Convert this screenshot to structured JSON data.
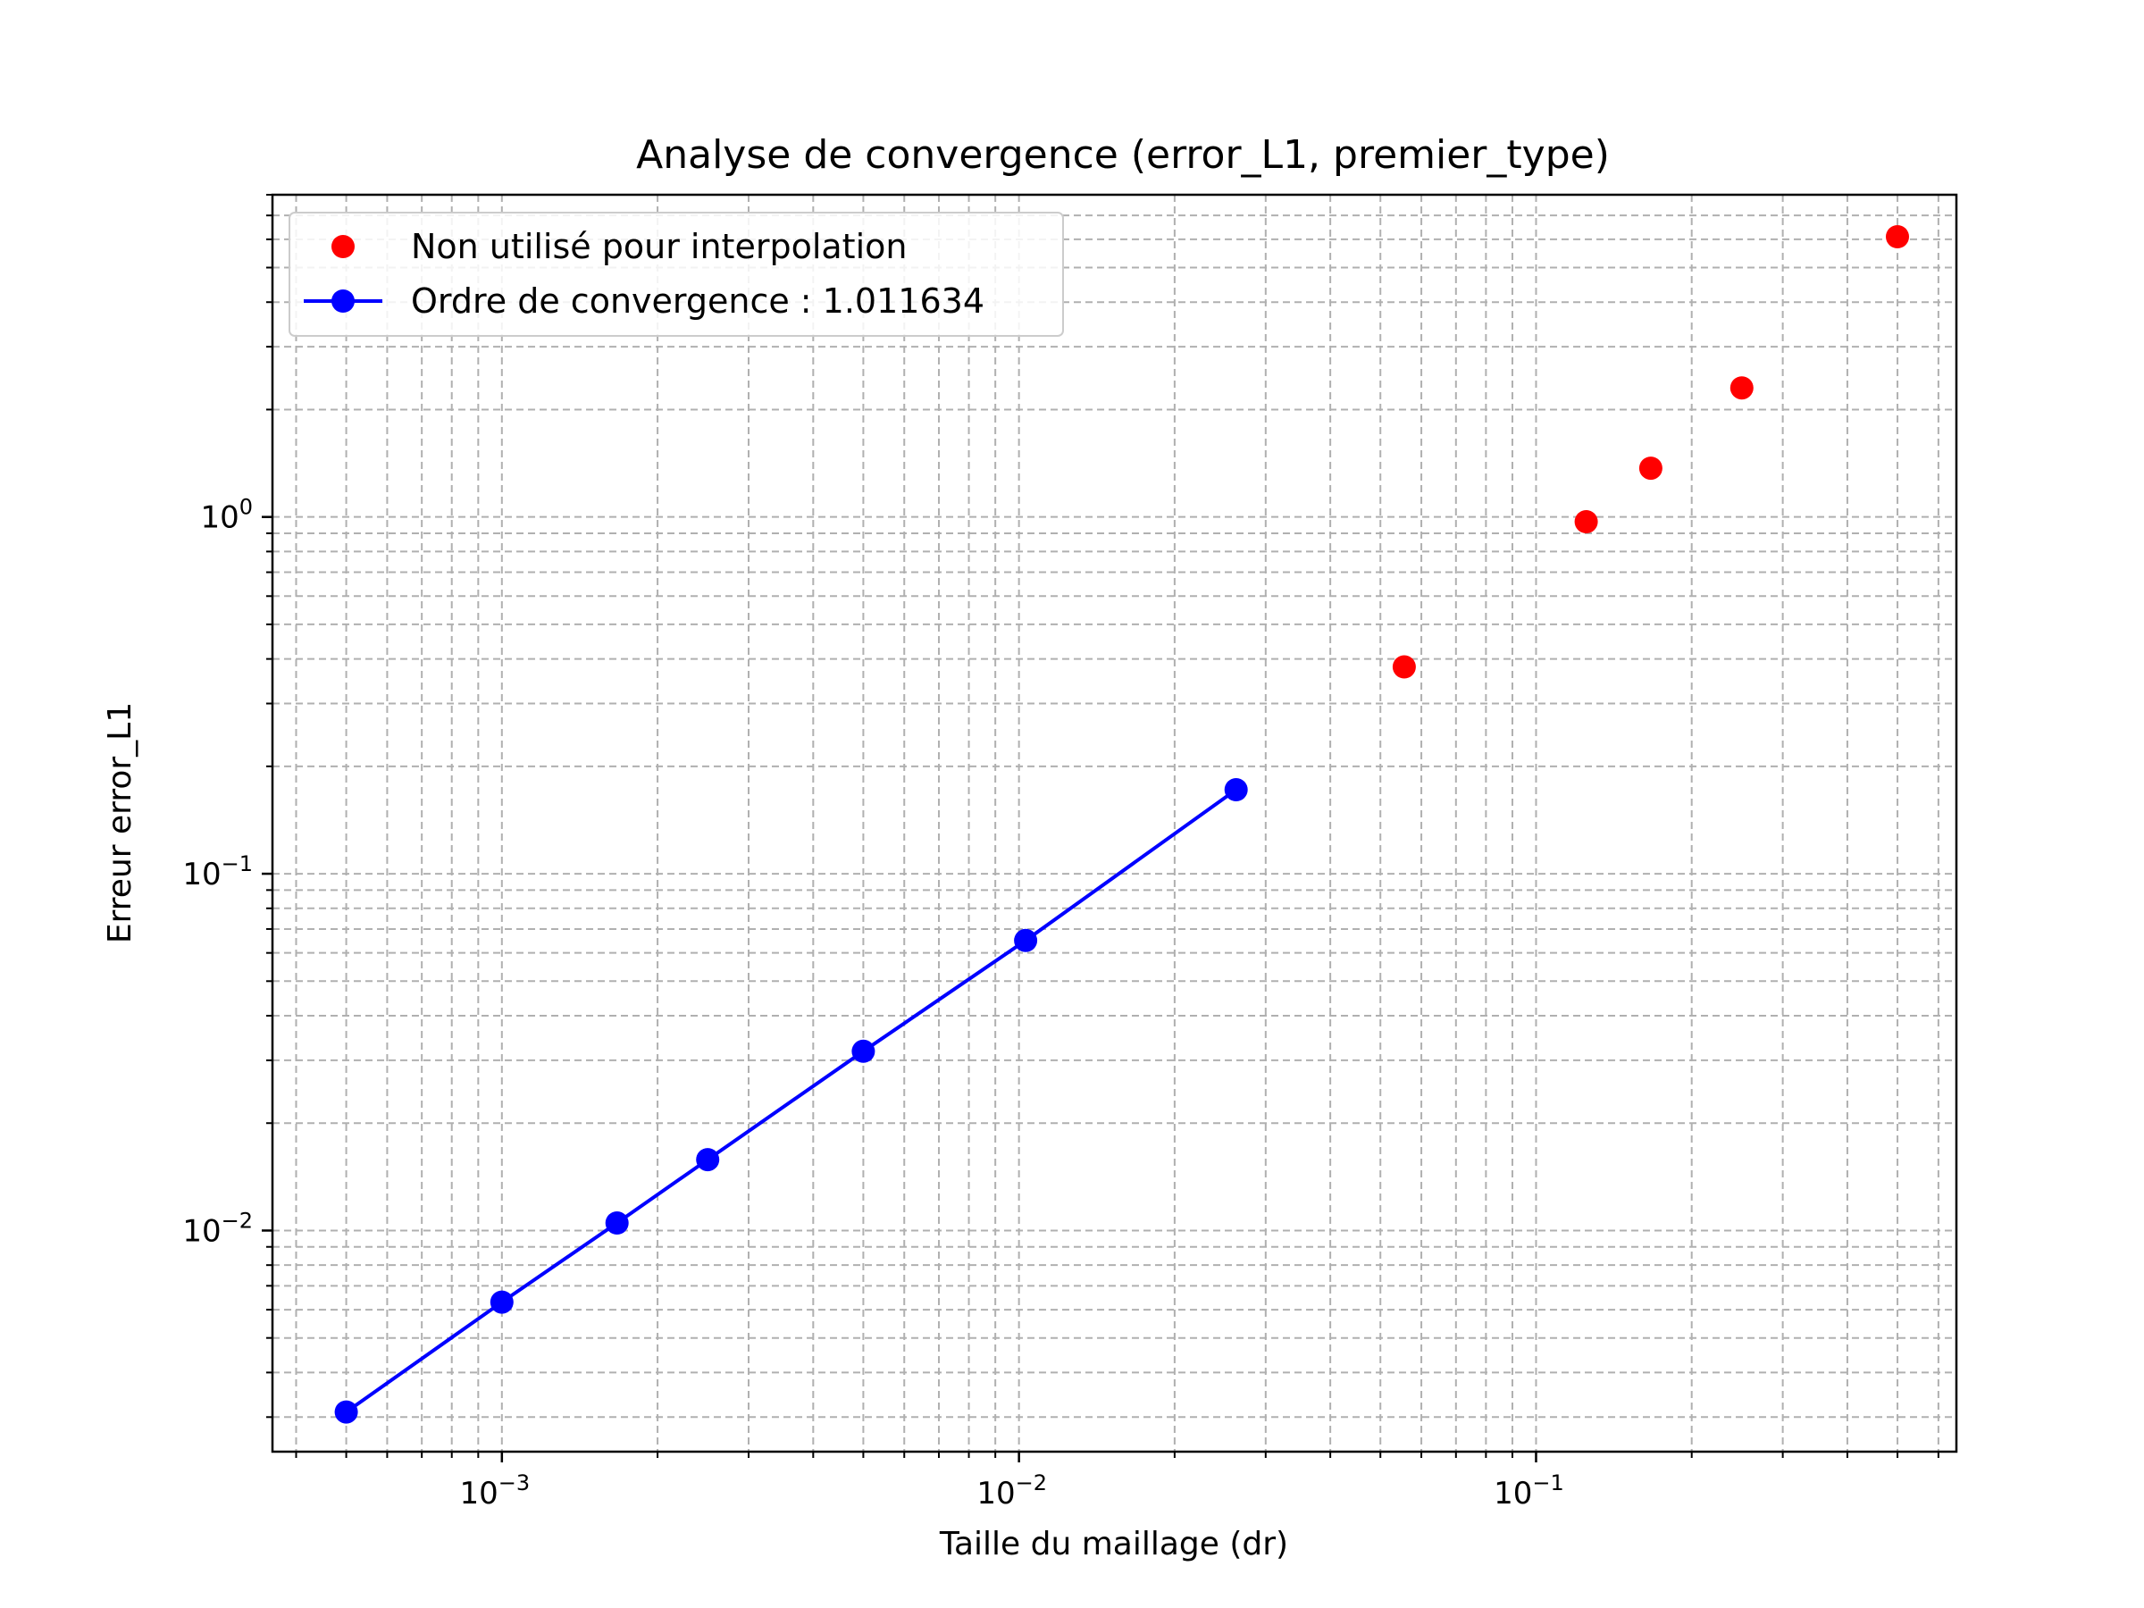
{
  "chart_data": {
    "type": "scatter",
    "title": "Analyse de convergence (error_L1, premier_type)",
    "xlabel": "Taille du maillage (dr)",
    "ylabel": "Erreur error_L1",
    "xscale": "log",
    "yscale": "log",
    "xlim": [
      0.00036,
      0.65
    ],
    "ylim": [
      0.0024,
      8.0
    ],
    "xticks": [
      {
        "value": 0.001,
        "base": "10",
        "exp": "−3"
      },
      {
        "value": 0.01,
        "base": "10",
        "exp": "−2"
      },
      {
        "value": 0.1,
        "base": "10",
        "exp": "−1"
      }
    ],
    "yticks": [
      {
        "value": 0.01,
        "base": "10",
        "exp": "−2"
      },
      {
        "value": 0.1,
        "base": "10",
        "exp": "−1"
      },
      {
        "value": 1,
        "base": "10",
        "exp": "0"
      }
    ],
    "grid": true,
    "grid_which": "both",
    "legend_position": "top-left",
    "series": [
      {
        "name": "Non utilisé pour interpolation",
        "style": "markers",
        "color": "#ff0000",
        "x": [
          0.5,
          0.25,
          0.1667,
          0.125,
          0.0556
        ],
        "y": [
          6.1,
          2.3,
          1.37,
          0.97,
          0.38
        ]
      },
      {
        "name": "Ordre de convergence : 1.011634",
        "style": "line-markers",
        "color": "#0000ff",
        "x": [
          0.0263,
          0.0103,
          0.005,
          0.0025,
          0.00167,
          0.001,
          0.0005
        ],
        "y": [
          0.172,
          0.065,
          0.0318,
          0.0158,
          0.0105,
          0.0063,
          0.0031
        ]
      }
    ]
  }
}
